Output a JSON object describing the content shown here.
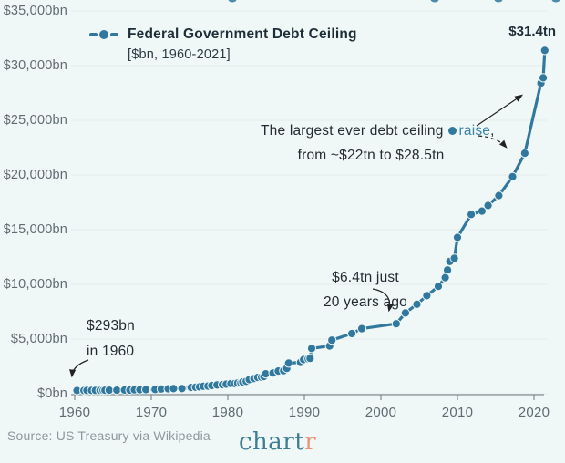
{
  "legend": {
    "title": "Federal Government Debt Ceiling",
    "subtitle": "[$bn, 1960-2021]"
  },
  "peak_label": "$31.4tn",
  "annotations": {
    "largest_raise": {
      "prefix": "The largest ever debt ceiling",
      "highlight": "raise",
      "suffix": ",",
      "line2": "from ~$22tn to $28.5tn"
    },
    "recent": {
      "line1": "$6.4tn just",
      "line2": "20 years ago"
    },
    "start": {
      "line1": "$293bn",
      "line2": "in 1960"
    }
  },
  "source": "Source: US Treasury via Wikipedia",
  "logo": {
    "main": "chart",
    "accent": "r"
  },
  "colors": {
    "accent": "#31789E",
    "logo_teal": "#3E7E95",
    "salmon": "#E8937A",
    "text": "#212F38",
    "axis_text": "#5F6B72",
    "muted": "#8D979D",
    "grid": "#E2EDEA",
    "axis_line": "#6A7479",
    "arrow": "#222222",
    "background": "#F0F8F7"
  },
  "chart_data": {
    "type": "line",
    "title": "Federal Government Debt Ceiling",
    "subtitle": "[$bn, 1960-2021]",
    "units": "$bn",
    "xlim": [
      1959,
      2022
    ],
    "ylim": [
      0,
      35000
    ],
    "grid": "horizontal",
    "legend_position": "top-left",
    "x_ticks": [
      1960,
      1970,
      1980,
      1990,
      2000,
      2010,
      2020
    ],
    "y_ticks": [
      {
        "label": "$35,000bn",
        "value": 35000
      },
      {
        "label": "$30,000bn",
        "value": 30000
      },
      {
        "label": "$25,000bn",
        "value": 25000
      },
      {
        "label": "$20,000bn",
        "value": 20000
      },
      {
        "label": "$15,000bn",
        "value": 15000
      },
      {
        "label": "$10,000bn",
        "value": 10000
      },
      {
        "label": "$5,000bn",
        "value": 5000
      },
      {
        "label": "$0bn",
        "value": 0
      }
    ],
    "points": [
      [
        1960.3,
        293
      ],
      [
        1961.2,
        293
      ],
      [
        1961.6,
        298
      ],
      [
        1962.2,
        300
      ],
      [
        1962.7,
        308
      ],
      [
        1963.3,
        305
      ],
      [
        1963.7,
        309
      ],
      [
        1963.95,
        315
      ],
      [
        1964.5,
        324
      ],
      [
        1965.5,
        328
      ],
      [
        1966.5,
        330
      ],
      [
        1967.2,
        336
      ],
      [
        1967.8,
        358
      ],
      [
        1968.5,
        365
      ],
      [
        1969.3,
        377
      ],
      [
        1970.5,
        395
      ],
      [
        1971.3,
        430
      ],
      [
        1972.2,
        450
      ],
      [
        1972.9,
        465
      ],
      [
        1974.0,
        476
      ],
      [
        1975.2,
        577
      ],
      [
        1975.8,
        595
      ],
      [
        1976.3,
        627
      ],
      [
        1976.8,
        682
      ],
      [
        1977.4,
        700
      ],
      [
        1977.9,
        752
      ],
      [
        1978.6,
        798
      ],
      [
        1979.3,
        830
      ],
      [
        1979.8,
        879
      ],
      [
        1980.4,
        925
      ],
      [
        1980.9,
        935
      ],
      [
        1981.3,
        985
      ],
      [
        1981.7,
        1000
      ],
      [
        1981.95,
        1080
      ],
      [
        1982.4,
        1143
      ],
      [
        1982.8,
        1290
      ],
      [
        1983.4,
        1389
      ],
      [
        1983.9,
        1490
      ],
      [
        1984.4,
        1520
      ],
      [
        1984.7,
        1573
      ],
      [
        1984.95,
        1824
      ],
      [
        1985.9,
        1904
      ],
      [
        1986.6,
        2079
      ],
      [
        1987.3,
        2111
      ],
      [
        1987.7,
        2320
      ],
      [
        1987.95,
        2800
      ],
      [
        1989.5,
        2870
      ],
      [
        1989.9,
        3123
      ],
      [
        1990.5,
        3195
      ],
      [
        1990.75,
        3230
      ],
      [
        1990.95,
        4145
      ],
      [
        1993.3,
        4370
      ],
      [
        1993.6,
        4900
      ],
      [
        1996.2,
        5500
      ],
      [
        1997.5,
        5950
      ],
      [
        2002.0,
        6400
      ],
      [
        2003.2,
        7384
      ],
      [
        2004.7,
        8184
      ],
      [
        2006.0,
        8965
      ],
      [
        2007.5,
        9815
      ],
      [
        2008.4,
        10615
      ],
      [
        2008.7,
        11315
      ],
      [
        2009.0,
        12104
      ],
      [
        2009.6,
        12394
      ],
      [
        2010.0,
        14294
      ],
      [
        2011.8,
        16394
      ],
      [
        2013.2,
        16699
      ],
      [
        2014.0,
        17212
      ],
      [
        2015.4,
        18113
      ],
      [
        2017.2,
        19847
      ],
      [
        2018.8,
        21988
      ],
      [
        2020.9,
        28401
      ],
      [
        2021.2,
        28881
      ],
      [
        2021.4,
        31381
      ]
    ]
  }
}
